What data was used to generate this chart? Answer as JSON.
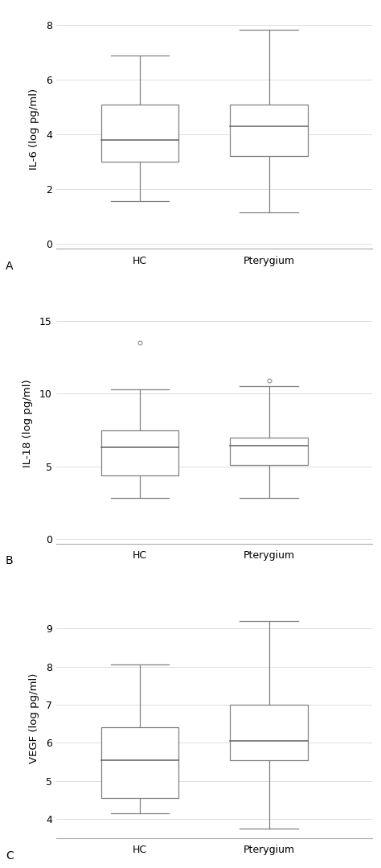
{
  "panels": [
    {
      "label": "A",
      "ylabel": "IL-6 (log pg/ml)",
      "yticks": [
        0,
        2,
        4,
        6,
        8
      ],
      "ylim": [
        -0.2,
        8.6
      ],
      "xtick_labels": [
        "HC",
        "Pterygium"
      ],
      "boxes": [
        {
          "group": "HC",
          "x": 1,
          "q1": 3.0,
          "median": 3.8,
          "q3": 5.1,
          "whislo": 1.55,
          "whishi": 6.9,
          "fliers": []
        },
        {
          "group": "Pterygium",
          "x": 2,
          "q1": 3.2,
          "median": 4.3,
          "q3": 5.1,
          "whislo": 1.15,
          "whishi": 7.85,
          "fliers": []
        }
      ]
    },
    {
      "label": "B",
      "ylabel": "IL-18 (log pg/ml)",
      "yticks": [
        0,
        5,
        10,
        15
      ],
      "ylim": [
        -0.3,
        16.2
      ],
      "xtick_labels": [
        "HC",
        "Pterygium"
      ],
      "boxes": [
        {
          "group": "HC",
          "x": 1,
          "q1": 4.4,
          "median": 6.3,
          "q3": 7.5,
          "whislo": 2.8,
          "whishi": 10.3,
          "fliers": [
            13.5
          ]
        },
        {
          "group": "Pterygium",
          "x": 2,
          "q1": 5.1,
          "median": 6.4,
          "q3": 7.0,
          "whislo": 2.8,
          "whishi": 10.5,
          "fliers": [
            10.9
          ]
        }
      ]
    },
    {
      "label": "C",
      "ylabel": "VEGF (log pg/ml)",
      "yticks": [
        4,
        5,
        6,
        7,
        8,
        9
      ],
      "ylim": [
        3.5,
        9.8
      ],
      "xtick_labels": [
        "HC",
        "Pterygium"
      ],
      "boxes": [
        {
          "group": "HC",
          "x": 1,
          "q1": 4.55,
          "median": 5.55,
          "q3": 6.4,
          "whislo": 4.15,
          "whishi": 8.05,
          "fliers": []
        },
        {
          "group": "Pterygium",
          "x": 2,
          "q1": 5.55,
          "median": 6.05,
          "q3": 7.0,
          "whislo": 3.75,
          "whishi": 9.2,
          "fliers": []
        }
      ]
    }
  ],
  "box_color": "#808080",
  "median_color": "#606060",
  "whisker_color": "#808080",
  "flier_color": "#909090",
  "background_color": "#ffffff",
  "box_width": 0.6,
  "linewidth": 0.9,
  "tick_fontsize": 9,
  "label_fontsize": 9.5,
  "panel_label_fontsize": 10
}
